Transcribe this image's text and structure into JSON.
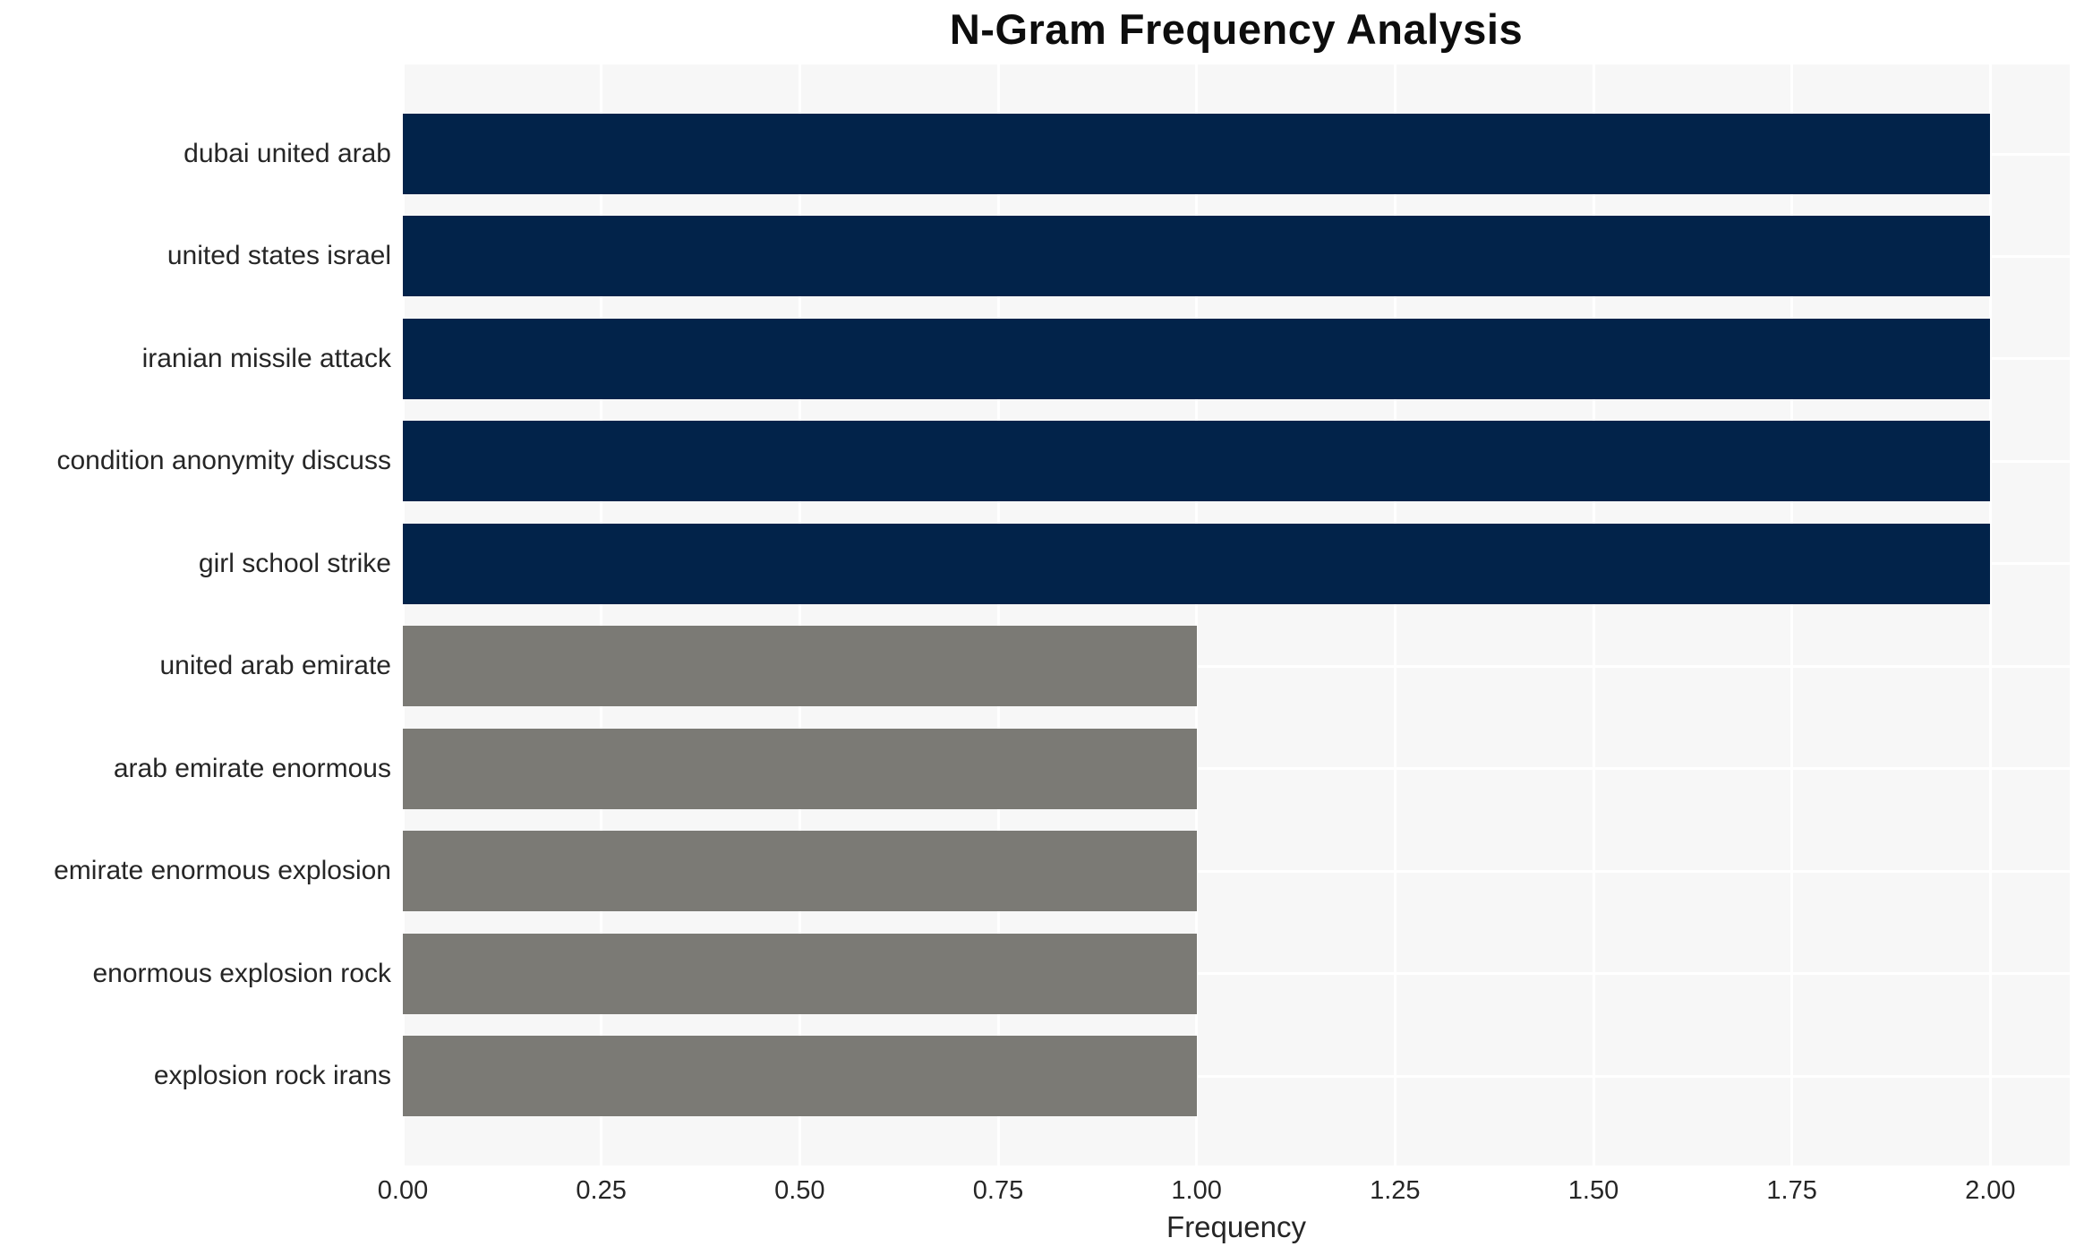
{
  "title": "N-Gram Frequency Analysis",
  "chart_data": {
    "type": "bar",
    "orientation": "horizontal",
    "title": "N-Gram Frequency Analysis",
    "xlabel": "Frequency",
    "ylabel": "",
    "categories": [
      "dubai united arab",
      "united states israel",
      "iranian missile attack",
      "condition anonymity discuss",
      "girl school strike",
      "united arab emirate",
      "arab emirate enormous",
      "emirate enormous explosion",
      "enormous explosion rock",
      "explosion rock irans"
    ],
    "values": [
      2,
      2,
      2,
      2,
      2,
      1,
      1,
      1,
      1,
      1
    ],
    "bar_colors": [
      "#02234A",
      "#02234A",
      "#02234A",
      "#02234A",
      "#02234A",
      "#7B7A75",
      "#7B7A75",
      "#7B7A75",
      "#7B7A75",
      "#7B7A75"
    ],
    "xticks": [
      "0.00",
      "0.25",
      "0.50",
      "0.75",
      "1.00",
      "1.25",
      "1.50",
      "1.75",
      "2.00"
    ],
    "xlim": [
      0,
      2.1
    ],
    "grid": true,
    "legend_position": "none",
    "colors": {
      "high_frequency_bar": "#02234A",
      "low_frequency_bar": "#7B7A75",
      "plot_background": "#F7F7F7",
      "gridline": "#FFFFFF",
      "tick_text": "#262626",
      "title_text": "#0D0D0D"
    }
  }
}
